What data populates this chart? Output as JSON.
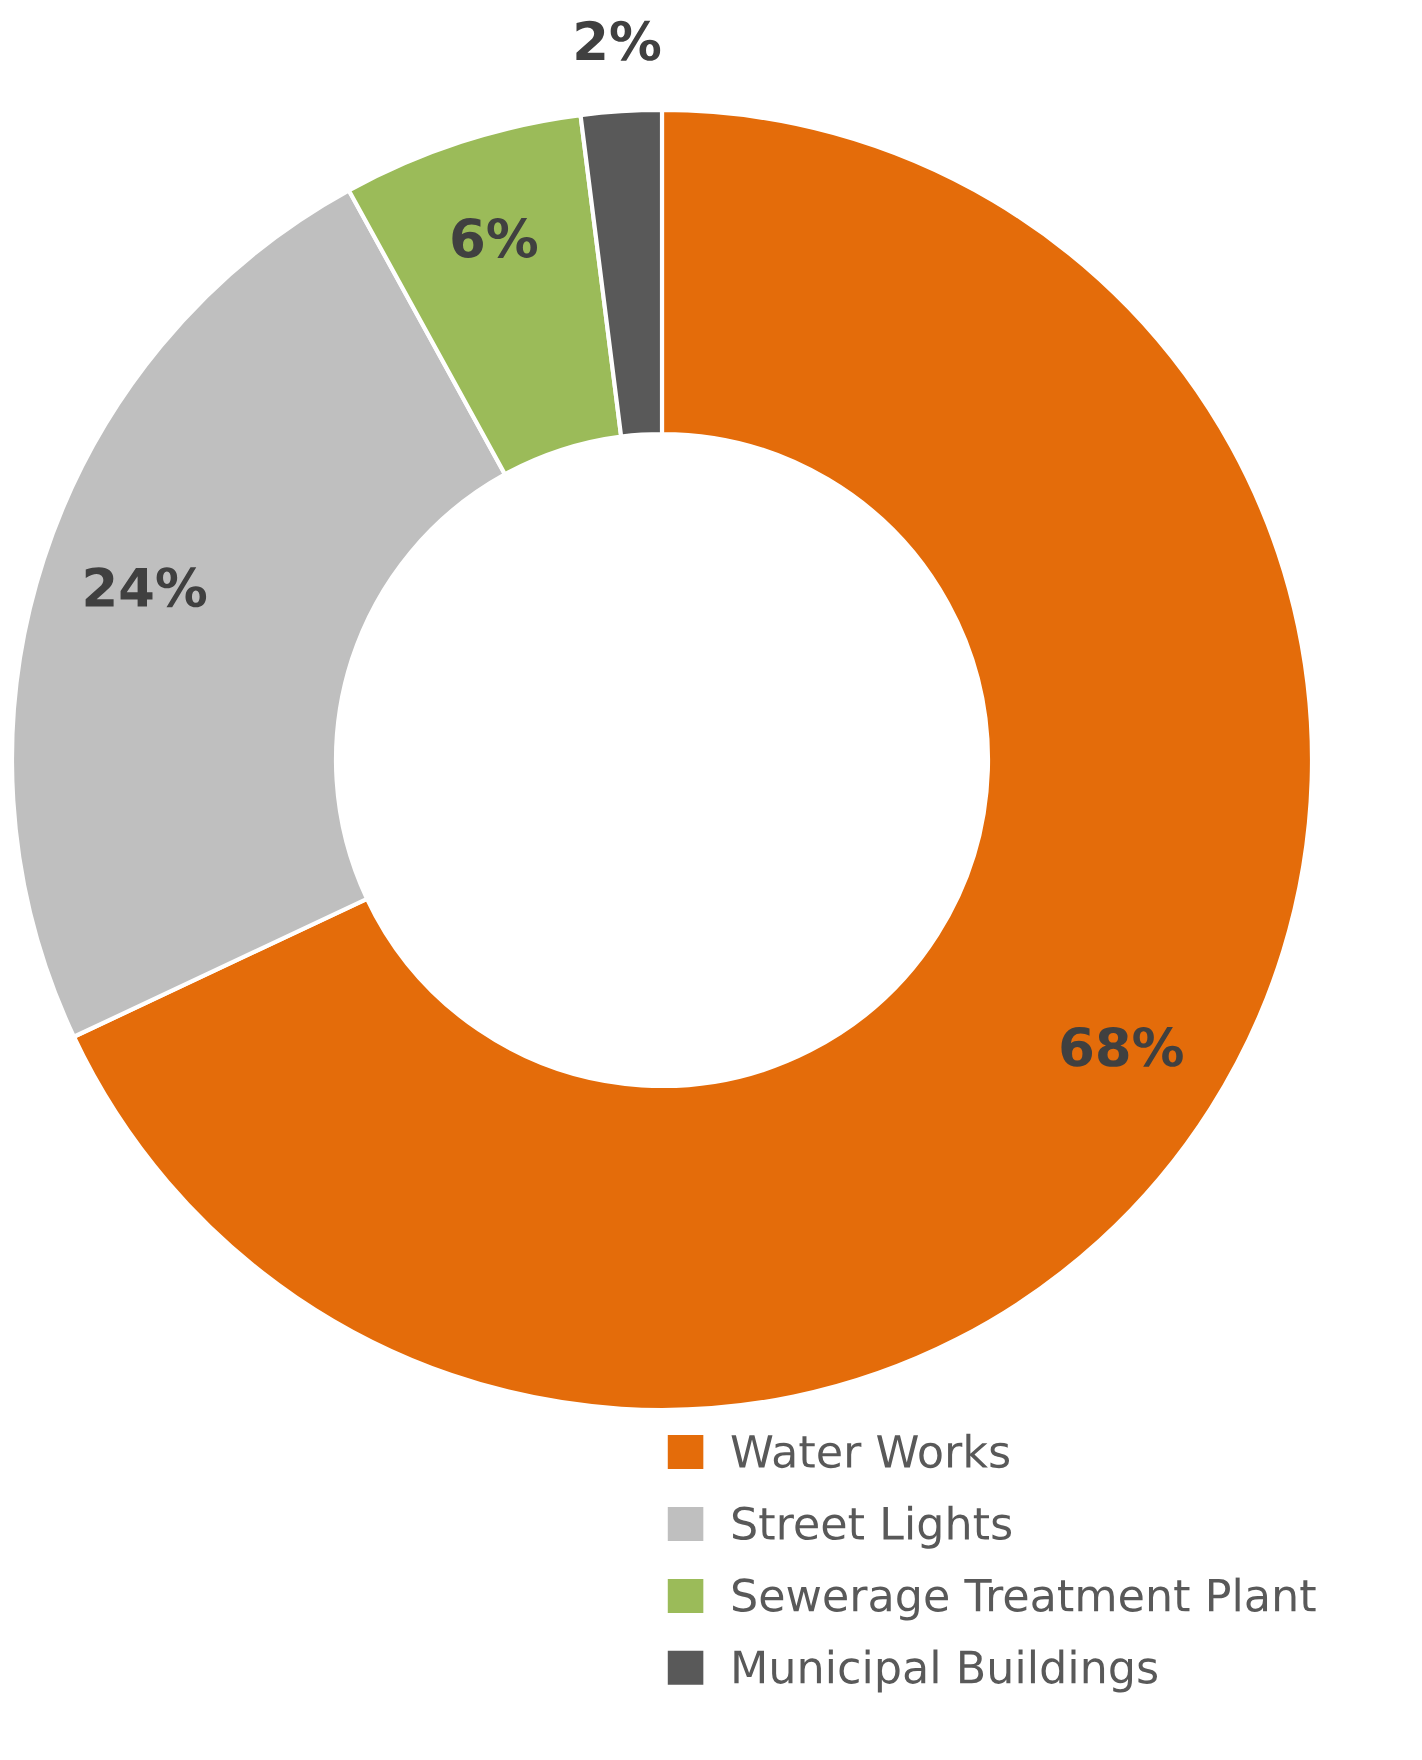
{
  "chart_data": {
    "type": "donut",
    "categories": [
      "Water Works",
      "Street Lights",
      "Sewerage Treatment Plant",
      "Municipal Buildings"
    ],
    "values": [
      68,
      24,
      6,
      2
    ],
    "colors": [
      "#e46c0a",
      "#bfbfbf",
      "#9bbb59",
      "#595959"
    ],
    "value_labels": [
      "68%",
      "24%",
      "6%",
      "2%"
    ],
    "legend": "bottom right"
  }
}
